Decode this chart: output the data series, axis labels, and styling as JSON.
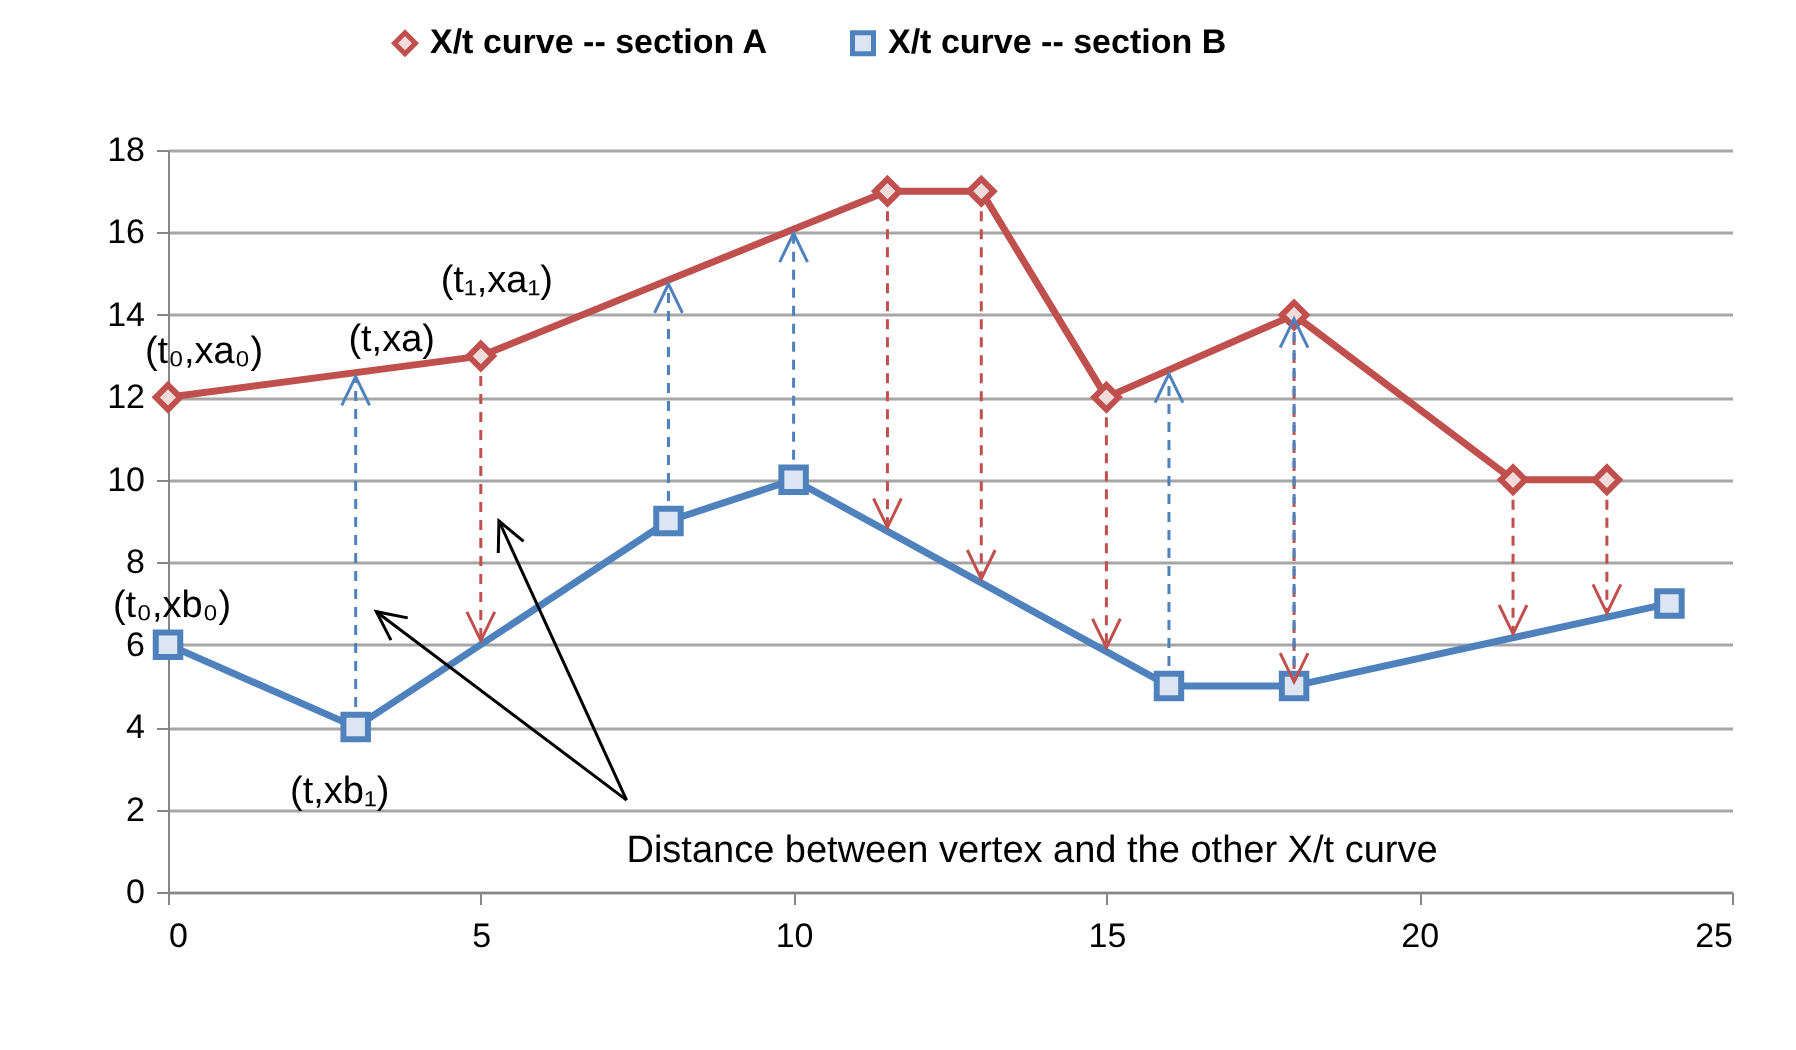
{
  "chart_data": {
    "type": "line",
    "xlim": [
      0,
      25
    ],
    "xticks": [
      0,
      5,
      10,
      15,
      20,
      25
    ],
    "ylim": [
      0,
      18
    ],
    "yticks": [
      0,
      2,
      4,
      6,
      8,
      10,
      12,
      14,
      16,
      18
    ],
    "grid": "y",
    "legend": "top",
    "line_style": "solid",
    "series": [
      {
        "name": "X/t curve -- section A",
        "color": "#c0504d",
        "marker": "diamond",
        "x": [
          0,
          5,
          11.5,
          13,
          15,
          18,
          21.5,
          23
        ],
        "values": [
          12,
          13,
          17,
          17,
          12,
          14,
          10,
          10
        ]
      },
      {
        "name": "X/t curve -- section B",
        "color": "#4f81bd",
        "marker": "square",
        "x": [
          0,
          3,
          8,
          10,
          16,
          18,
          24
        ],
        "values": [
          6,
          4,
          9,
          10,
          5,
          5,
          7
        ]
      }
    ],
    "annotations": [
      {
        "text": "(t₀,xa₀)",
        "x": 0,
        "y": 12
      },
      {
        "text": "(t,xa)",
        "x": 3,
        "y": 12.6
      },
      {
        "text": "(t₁,xa₁)",
        "x": 5,
        "y": 13
      },
      {
        "text": "(t₀,xb₀)",
        "x": 0,
        "y": 6
      },
      {
        "text": "(t,xb₁)",
        "x": 3,
        "y": 4
      },
      "Distance between vertex and the other X/t curve"
    ]
  }
}
